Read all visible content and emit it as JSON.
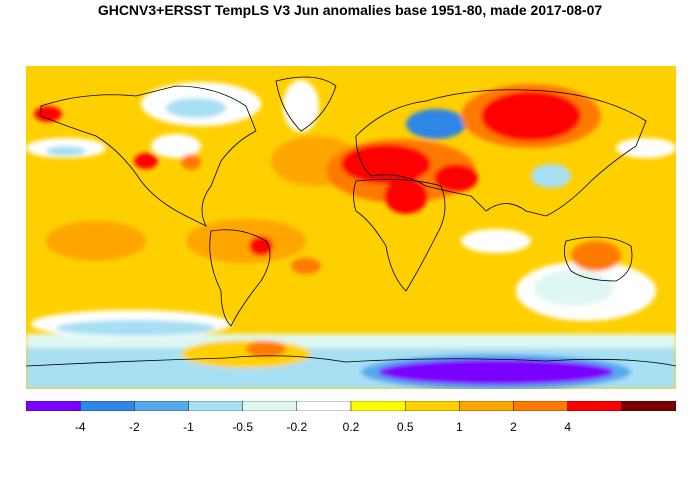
{
  "title": "GHCNV3+ERSST TempLS V3 Jun anomalies base 1951-80, made 2017-08-07",
  "colors": {
    "bin_neg4_minus": "#7a00ff",
    "bin_neg4_neg2": "#2f86e6",
    "bin_neg2_neg1": "#55aaee",
    "bin_neg1_neg05": "#a7dff3",
    "bin_neg05_neg02": "#dff7f2",
    "bin_neg02_02": "#ffffff",
    "bin_02_05": "#ffff00",
    "bin_05_1": "#ffd000",
    "bin_1_2": "#ffa500",
    "bin_2_4": "#ff7a00",
    "bin_4_plus": "#ff0000",
    "bin_extreme": "#7a0000",
    "coastline": "#000000"
  },
  "legend": {
    "bin_colors": [
      "#7a00ff",
      "#2f86e6",
      "#55aaee",
      "#a7dff3",
      "#dff7f2",
      "#ffffff",
      "#ffff00",
      "#ffd000",
      "#ffa500",
      "#ff7a00",
      "#ff0000",
      "#7a0000"
    ],
    "tick_labels": [
      "-4",
      "-2",
      "-1",
      "-0.5",
      "-0.2",
      "0.2",
      "0.5",
      "1",
      "2",
      "4"
    ]
  }
}
